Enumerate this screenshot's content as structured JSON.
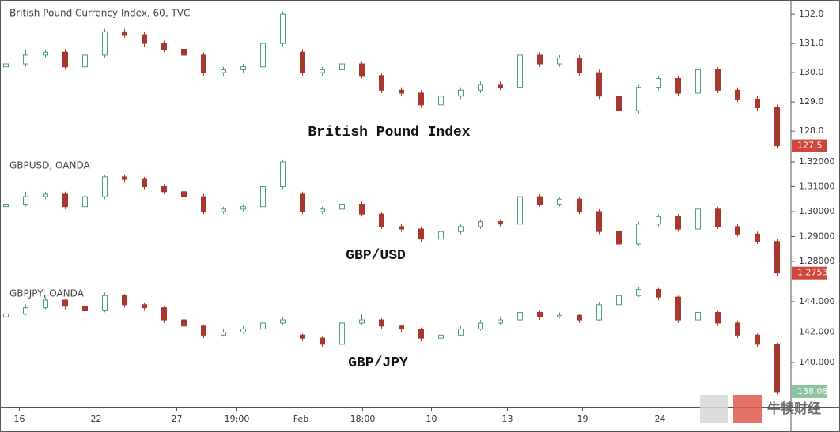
{
  "chart_data": [
    {
      "type": "candlestick",
      "title": "British Pound Currency Index, 60, TVC",
      "annotation": "British Pound Index",
      "color_up": "#4a9e7c",
      "color_down": "#a8372e",
      "last_price_color": "#d0453b",
      "xlim": [
        -0.3,
        39.7
      ],
      "ylim": [
        127.3,
        132.49
      ],
      "yticks": [
        {
          "value": 132,
          "label": "132.0"
        },
        {
          "value": 131,
          "label": "131.0"
        },
        {
          "value": 130,
          "label": "130.0"
        },
        {
          "value": 129,
          "label": "129.0"
        },
        {
          "value": 128,
          "label": "128.0"
        }
      ],
      "last_price": 127.5,
      "candles": [
        [
          130.2,
          130.4,
          130.1,
          130.3
        ],
        [
          130.3,
          130.8,
          130.2,
          130.6
        ],
        [
          130.6,
          130.8,
          130.5,
          130.7
        ],
        [
          130.7,
          130.8,
          130.1,
          130.2
        ],
        [
          130.2,
          130.7,
          130.1,
          130.6
        ],
        [
          130.6,
          131.5,
          130.5,
          131.4
        ],
        [
          131.4,
          131.5,
          131.2,
          131.3
        ],
        [
          131.3,
          131.4,
          130.9,
          131.0
        ],
        [
          131.0,
          131.1,
          130.7,
          130.8
        ],
        [
          130.8,
          130.9,
          130.5,
          130.6
        ],
        [
          130.6,
          130.7,
          129.9,
          130.0
        ],
        [
          130.0,
          130.2,
          129.9,
          130.1
        ],
        [
          130.1,
          130.3,
          130.0,
          130.2
        ],
        [
          130.2,
          131.1,
          130.1,
          131.0
        ],
        [
          131.0,
          132.1,
          130.9,
          132.0
        ],
        [
          130.7,
          130.8,
          129.9,
          130.0
        ],
        [
          130.0,
          130.2,
          129.9,
          130.1
        ],
        [
          130.1,
          130.4,
          130.0,
          130.3
        ],
        [
          130.3,
          130.4,
          129.8,
          129.9
        ],
        [
          129.9,
          130.0,
          129.3,
          129.4
        ],
        [
          129.4,
          129.5,
          129.2,
          129.3
        ],
        [
          129.3,
          129.4,
          128.8,
          128.9
        ],
        [
          128.9,
          129.3,
          128.8,
          129.2
        ],
        [
          129.2,
          129.5,
          129.1,
          129.4
        ],
        [
          129.4,
          129.7,
          129.3,
          129.6
        ],
        [
          129.6,
          129.7,
          129.4,
          129.5
        ],
        [
          129.5,
          130.7,
          129.4,
          130.6
        ],
        [
          130.6,
          130.7,
          130.2,
          130.3
        ],
        [
          130.3,
          130.6,
          130.2,
          130.5
        ],
        [
          130.5,
          130.6,
          129.9,
          130.0
        ],
        [
          130.0,
          130.1,
          129.1,
          129.2
        ],
        [
          129.2,
          129.3,
          128.6,
          128.7
        ],
        [
          128.7,
          129.6,
          128.6,
          129.5
        ],
        [
          129.5,
          129.9,
          129.4,
          129.8
        ],
        [
          129.8,
          129.9,
          129.2,
          129.3
        ],
        [
          129.3,
          130.2,
          129.2,
          130.1
        ],
        [
          130.1,
          130.2,
          129.3,
          129.4
        ],
        [
          129.4,
          129.5,
          129.0,
          129.1
        ],
        [
          129.1,
          129.2,
          128.7,
          128.8
        ],
        [
          128.8,
          128.9,
          127.4,
          127.5
        ]
      ]
    },
    {
      "type": "candlestick",
      "title": "GBPUSD, OANDA",
      "annotation": "GBP/USD",
      "color_up": "#4a9e7c",
      "color_down": "#a8372e",
      "last_price_color": "#d0453b",
      "xlim": [
        -0.3,
        39.7
      ],
      "ylim": [
        1.2727,
        1.3238
      ],
      "yticks": [
        {
          "value": 1.32,
          "label": "1.32000"
        },
        {
          "value": 1.31,
          "label": "1.31000"
        },
        {
          "value": 1.3,
          "label": "1.30000"
        },
        {
          "value": 1.29,
          "label": "1.29000"
        },
        {
          "value": 1.28,
          "label": "1.28000"
        }
      ],
      "last_price": 1.27534,
      "candles": [
        [
          1.302,
          1.304,
          1.301,
          1.303
        ],
        [
          1.303,
          1.308,
          1.302,
          1.306
        ],
        [
          1.306,
          1.308,
          1.305,
          1.307
        ],
        [
          1.307,
          1.308,
          1.301,
          1.302
        ],
        [
          1.302,
          1.307,
          1.301,
          1.306
        ],
        [
          1.306,
          1.315,
          1.305,
          1.314
        ],
        [
          1.314,
          1.315,
          1.312,
          1.313
        ],
        [
          1.313,
          1.314,
          1.309,
          1.31
        ],
        [
          1.31,
          1.311,
          1.307,
          1.308
        ],
        [
          1.308,
          1.309,
          1.305,
          1.306
        ],
        [
          1.306,
          1.307,
          1.299,
          1.3
        ],
        [
          1.3,
          1.302,
          1.299,
          1.301
        ],
        [
          1.301,
          1.303,
          1.3,
          1.302
        ],
        [
          1.302,
          1.311,
          1.301,
          1.31
        ],
        [
          1.31,
          1.321,
          1.309,
          1.32
        ],
        [
          1.307,
          1.308,
          1.299,
          1.3
        ],
        [
          1.3,
          1.302,
          1.299,
          1.301
        ],
        [
          1.301,
          1.304,
          1.3,
          1.303
        ],
        [
          1.303,
          1.304,
          1.298,
          1.299
        ],
        [
          1.299,
          1.3,
          1.293,
          1.294
        ],
        [
          1.294,
          1.295,
          1.292,
          1.293
        ],
        [
          1.293,
          1.294,
          1.288,
          1.289
        ],
        [
          1.289,
          1.293,
          1.288,
          1.292
        ],
        [
          1.292,
          1.295,
          1.291,
          1.294
        ],
        [
          1.294,
          1.297,
          1.293,
          1.296
        ],
        [
          1.296,
          1.297,
          1.294,
          1.295
        ],
        [
          1.295,
          1.307,
          1.294,
          1.306
        ],
        [
          1.306,
          1.307,
          1.302,
          1.303
        ],
        [
          1.303,
          1.306,
          1.302,
          1.305
        ],
        [
          1.305,
          1.306,
          1.299,
          1.3
        ],
        [
          1.3,
          1.301,
          1.291,
          1.292
        ],
        [
          1.292,
          1.293,
          1.286,
          1.287
        ],
        [
          1.287,
          1.296,
          1.286,
          1.295
        ],
        [
          1.295,
          1.299,
          1.294,
          1.298
        ],
        [
          1.298,
          1.299,
          1.292,
          1.293
        ],
        [
          1.293,
          1.302,
          1.292,
          1.301
        ],
        [
          1.301,
          1.302,
          1.293,
          1.294
        ],
        [
          1.294,
          1.295,
          1.29,
          1.291
        ],
        [
          1.291,
          1.292,
          1.287,
          1.288
        ],
        [
          1.288,
          1.289,
          1.274,
          1.27534
        ]
      ]
    },
    {
      "type": "candlestick",
      "title": "GBPJPY, OANDA",
      "annotation": "GBP/JPY",
      "color_up": "#4a9e7c",
      "color_down": "#a8372e",
      "last_price_color": "#8cc4a0",
      "xlim": [
        -0.3,
        39.7
      ],
      "ylim": [
        137.09,
        145.4
      ],
      "yticks": [
        {
          "value": 144,
          "label": "144.000"
        },
        {
          "value": 142,
          "label": "142.000"
        },
        {
          "value": 140,
          "label": "140.000"
        }
      ],
      "last_price": {
        "value": 138.08,
        "label": "138.080"
      },
      "xticks": [
        {
          "value": 0.68,
          "label": "16"
        },
        {
          "value": 4.56,
          "label": "22"
        },
        {
          "value": 8.64,
          "label": "27"
        },
        {
          "value": 11.68,
          "label": "19:00"
        },
        {
          "value": 14.92,
          "label": "Feb"
        },
        {
          "value": 18.04,
          "label": "18:00"
        },
        {
          "value": 21.52,
          "label": "10"
        },
        {
          "value": 25.36,
          "label": "13"
        },
        {
          "value": 29.16,
          "label": "19"
        },
        {
          "value": 33.08,
          "label": "24"
        }
      ],
      "candles": [
        [
          143.0,
          143.4,
          142.9,
          143.2
        ],
        [
          143.2,
          143.8,
          143.1,
          143.6
        ],
        [
          143.6,
          144.3,
          143.5,
          144.1
        ],
        [
          144.1,
          144.2,
          143.5,
          143.7
        ],
        [
          143.7,
          143.8,
          143.2,
          143.4
        ],
        [
          143.4,
          144.6,
          143.3,
          144.4
        ],
        [
          144.4,
          144.5,
          143.6,
          143.8
        ],
        [
          143.8,
          143.9,
          143.4,
          143.6
        ],
        [
          143.6,
          143.7,
          142.6,
          142.8
        ],
        [
          142.8,
          142.9,
          142.2,
          142.4
        ],
        [
          142.4,
          142.5,
          141.6,
          141.8
        ],
        [
          141.8,
          142.2,
          141.7,
          142.0
        ],
        [
          142.0,
          142.4,
          141.9,
          142.2
        ],
        [
          142.2,
          142.8,
          142.1,
          142.6
        ],
        [
          142.6,
          143.0,
          142.5,
          142.8
        ],
        [
          141.8,
          141.9,
          141.4,
          141.6
        ],
        [
          141.6,
          141.7,
          141.0,
          141.2
        ],
        [
          141.2,
          142.8,
          141.1,
          142.6
        ],
        [
          142.6,
          143.2,
          142.5,
          142.8
        ],
        [
          142.8,
          142.9,
          142.2,
          142.4
        ],
        [
          142.4,
          142.5,
          142.0,
          142.2
        ],
        [
          142.2,
          142.3,
          141.4,
          141.6
        ],
        [
          141.6,
          142.0,
          141.5,
          141.8
        ],
        [
          141.8,
          142.4,
          141.7,
          142.2
        ],
        [
          142.2,
          142.8,
          142.1,
          142.6
        ],
        [
          142.6,
          143.0,
          142.5,
          142.8
        ],
        [
          142.8,
          143.5,
          142.7,
          143.3
        ],
        [
          143.3,
          143.4,
          142.8,
          143.0
        ],
        [
          143.0,
          143.3,
          142.9,
          143.1
        ],
        [
          143.1,
          143.2,
          142.6,
          142.8
        ],
        [
          142.8,
          144.0,
          142.7,
          143.8
        ],
        [
          143.8,
          144.6,
          143.7,
          144.4
        ],
        [
          144.4,
          145.0,
          144.3,
          144.8
        ],
        [
          144.8,
          144.9,
          144.1,
          144.3
        ],
        [
          144.3,
          144.4,
          142.6,
          142.8
        ],
        [
          142.8,
          143.5,
          142.7,
          143.3
        ],
        [
          143.3,
          143.4,
          142.4,
          142.6
        ],
        [
          142.6,
          142.7,
          141.6,
          141.8
        ],
        [
          141.8,
          141.9,
          141.0,
          141.2
        ],
        [
          141.2,
          141.3,
          137.9,
          138.08
        ]
      ]
    }
  ],
  "watermark": "牛犊财经"
}
